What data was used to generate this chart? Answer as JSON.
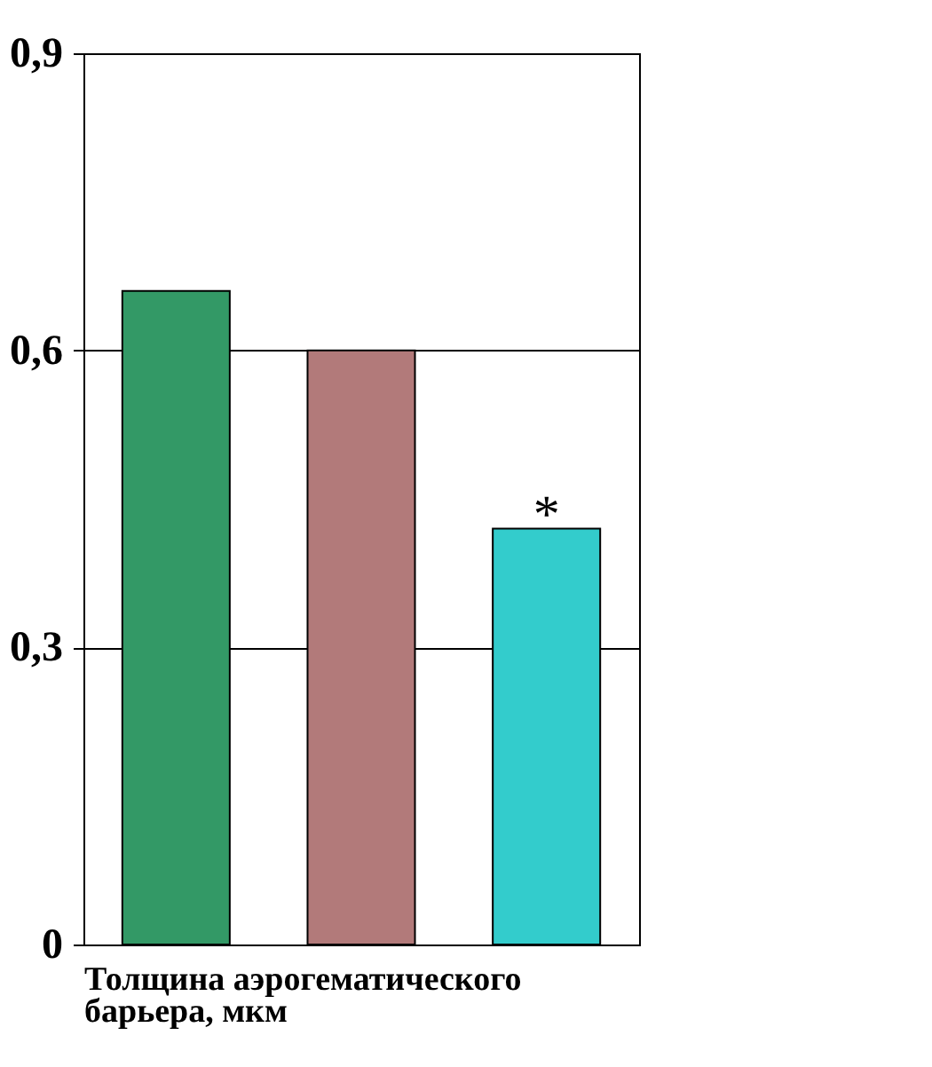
{
  "chart_data": {
    "type": "bar",
    "categories": [
      null,
      null,
      null
    ],
    "values": [
      0.66,
      0.6,
      0.42
    ],
    "colors": [
      "#339966",
      "#b27a7a",
      "#33cccc"
    ],
    "xlabel": "Толщина аэрогематического барьера, мкм",
    "ylim": [
      0,
      0.9
    ],
    "yticks": [
      {
        "value": 0,
        "label": "0"
      },
      {
        "value": 0.3,
        "label": "0,3"
      },
      {
        "value": 0.6,
        "label": "0,6"
      },
      {
        "value": 0.9,
        "label": "0,9"
      }
    ],
    "grid": "y",
    "annotations": [
      {
        "text": "*",
        "y": 0.42
      }
    ]
  }
}
